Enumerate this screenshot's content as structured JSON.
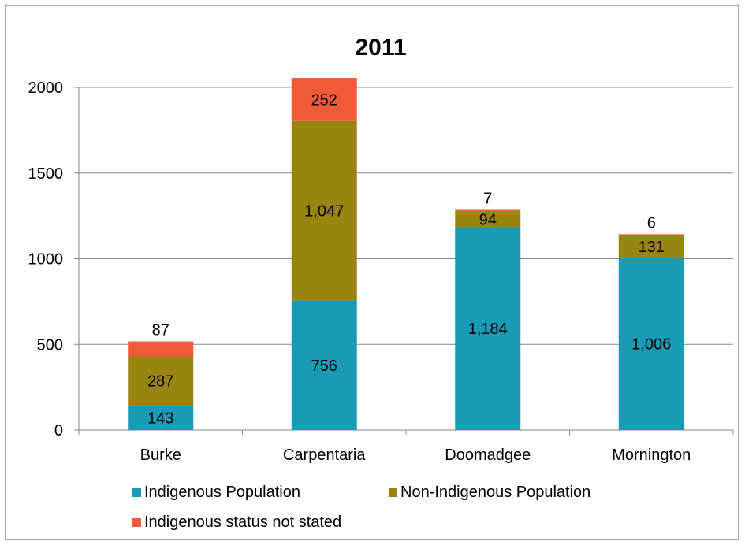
{
  "chart_data": {
    "type": "bar",
    "stacked": true,
    "title": "2011",
    "xlabel": "",
    "ylabel": "",
    "categories": [
      "Burke",
      "Carpentaria",
      "Doomadgee",
      "Mornington"
    ],
    "ylim": [
      0,
      2000
    ],
    "yticks": [
      0,
      500,
      1000,
      1500,
      2000
    ],
    "grid": true,
    "legend_position": "bottom",
    "series": [
      {
        "name": "Indigenous Population",
        "color": "#1a9bb5",
        "values": [
          143,
          756,
          1184,
          1006
        ],
        "labels": [
          "143",
          "756",
          "1,184",
          "1,006"
        ]
      },
      {
        "name": "Non-Indigenous Population",
        "color": "#9a8410",
        "values": [
          287,
          1047,
          94,
          131
        ],
        "labels": [
          "287",
          "1,047",
          "94",
          "131"
        ]
      },
      {
        "name": "Indigenous status not stated",
        "color": "#f05a38",
        "values": [
          87,
          252,
          7,
          6
        ],
        "labels": [
          "87",
          "252",
          "7",
          "6"
        ]
      }
    ]
  }
}
